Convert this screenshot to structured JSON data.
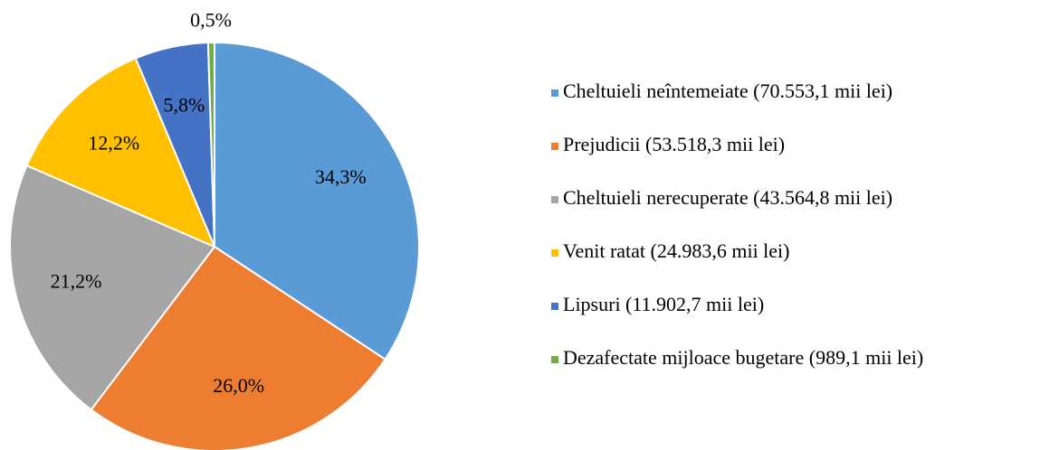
{
  "chart_data": {
    "type": "pie",
    "categories": [
      "Cheltuieli neîntemeiate (70.553,1 mii lei)",
      "Prejudicii (53.518,3 mii lei)",
      "Cheltuieli nerecuperate (43.564,8 mii lei)",
      "Venit ratat (24.983,6 mii lei)",
      "Lipsuri (11.902,7 mii lei)",
      "Dezafectate mijloace bugetare (989,1 mii lei)"
    ],
    "values": [
      34.3,
      26.0,
      21.2,
      12.2,
      5.8,
      0.5
    ],
    "value_labels": [
      "34,3%",
      "26,0%",
      "21,2%",
      "12,2%",
      "5,8%",
      "0,5%"
    ],
    "colors": [
      "#5b9bd5",
      "#ed7d31",
      "#a5a5a5",
      "#ffc000",
      "#4472c4",
      "#70ad47"
    ],
    "legend": "right"
  }
}
